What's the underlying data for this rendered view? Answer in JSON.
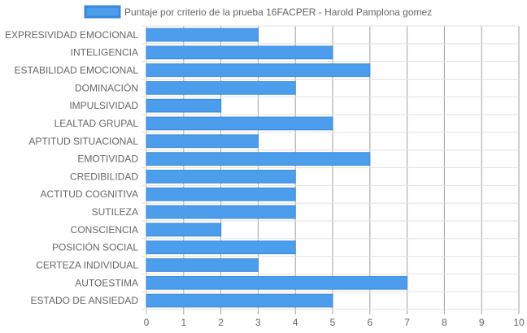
{
  "chart_data": {
    "type": "bar",
    "orientation": "horizontal",
    "categories": [
      "EXPRESIVIDAD EMOCIONAL",
      "INTELIGENCIA",
      "ESTABILIDAD EMOCIONAL",
      "DOMINACIÓN",
      "IMPULSIVIDAD",
      "LEALTAD GRUPAL",
      "APTITUD SITUACIONAL",
      "EMOTIVIDAD",
      "CREDIBILIDAD",
      "ACTITUD COGNITIVA",
      "SUTILEZA",
      "CONSCIENCIA",
      "POSICIÓN SOCIAL",
      "CERTEZA INDIVIDUAL",
      "AUTOESTIMA",
      "ESTADO DE ANSIEDAD"
    ],
    "series": [
      {
        "name": "Puntaje por criterio de la prueba 16FACPER - Harold Pamplona gomez",
        "values": [
          3,
          5,
          6,
          4,
          2,
          5,
          3,
          6,
          4,
          4,
          4,
          2,
          4,
          3,
          7,
          5
        ],
        "color": "#4d9ded",
        "border_color": "#3b87d9"
      }
    ],
    "xlim": [
      0,
      10
    ],
    "x_ticks": [
      0,
      1,
      2,
      3,
      4,
      5,
      6,
      7,
      8,
      9,
      10
    ],
    "grid": true,
    "legend": "top-center"
  }
}
